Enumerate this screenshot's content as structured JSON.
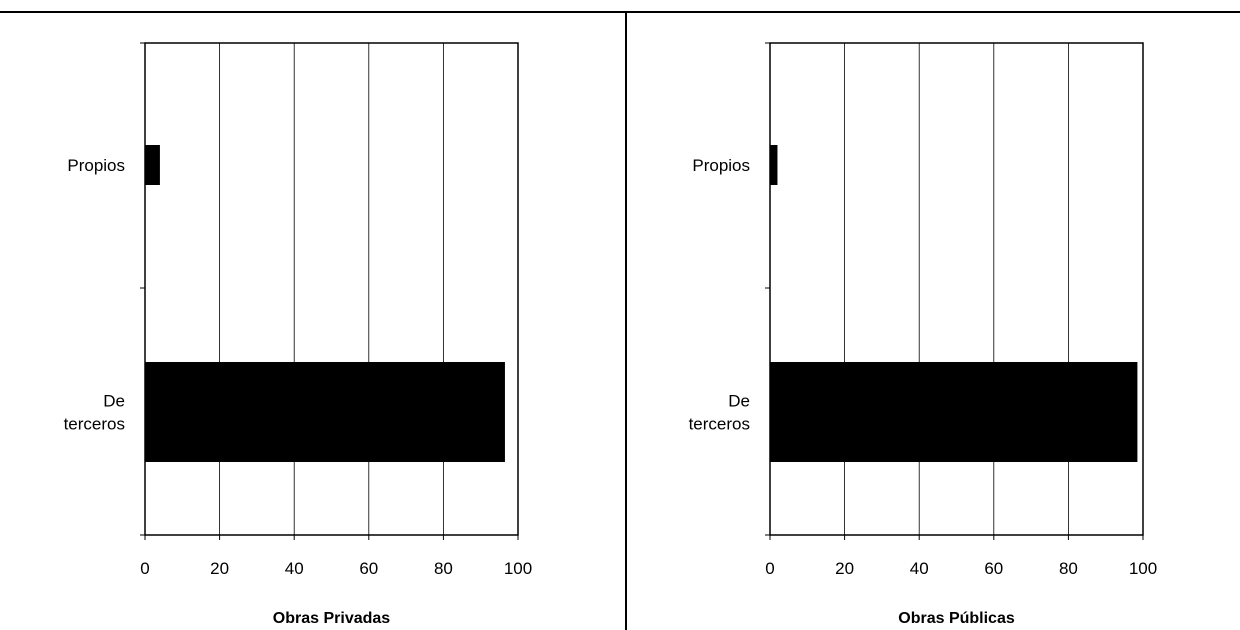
{
  "chart_data": [
    {
      "type": "bar",
      "orientation": "horizontal",
      "categories": [
        "Propios",
        "De terceros"
      ],
      "category_lines": [
        [
          "Propios"
        ],
        [
          "De",
          "terceros"
        ]
      ],
      "values": [
        4,
        96.5
      ],
      "xlabel": "Obras Privadas",
      "xlim": [
        0,
        100
      ],
      "xticks": [
        "0",
        "20",
        "40",
        "60",
        "80",
        "100"
      ],
      "grid": "vertical",
      "bar_color": "#000000"
    },
    {
      "type": "bar",
      "orientation": "horizontal",
      "categories": [
        "Propios",
        "De terceros"
      ],
      "category_lines": [
        [
          "Propios"
        ],
        [
          "De",
          "terceros"
        ]
      ],
      "values": [
        2,
        98.5
      ],
      "xlabel": "Obras Públicas",
      "xlim": [
        0,
        100
      ],
      "xticks": [
        "0",
        "20",
        "40",
        "60",
        "80",
        "100"
      ],
      "grid": "vertical",
      "bar_color": "#000000"
    }
  ]
}
